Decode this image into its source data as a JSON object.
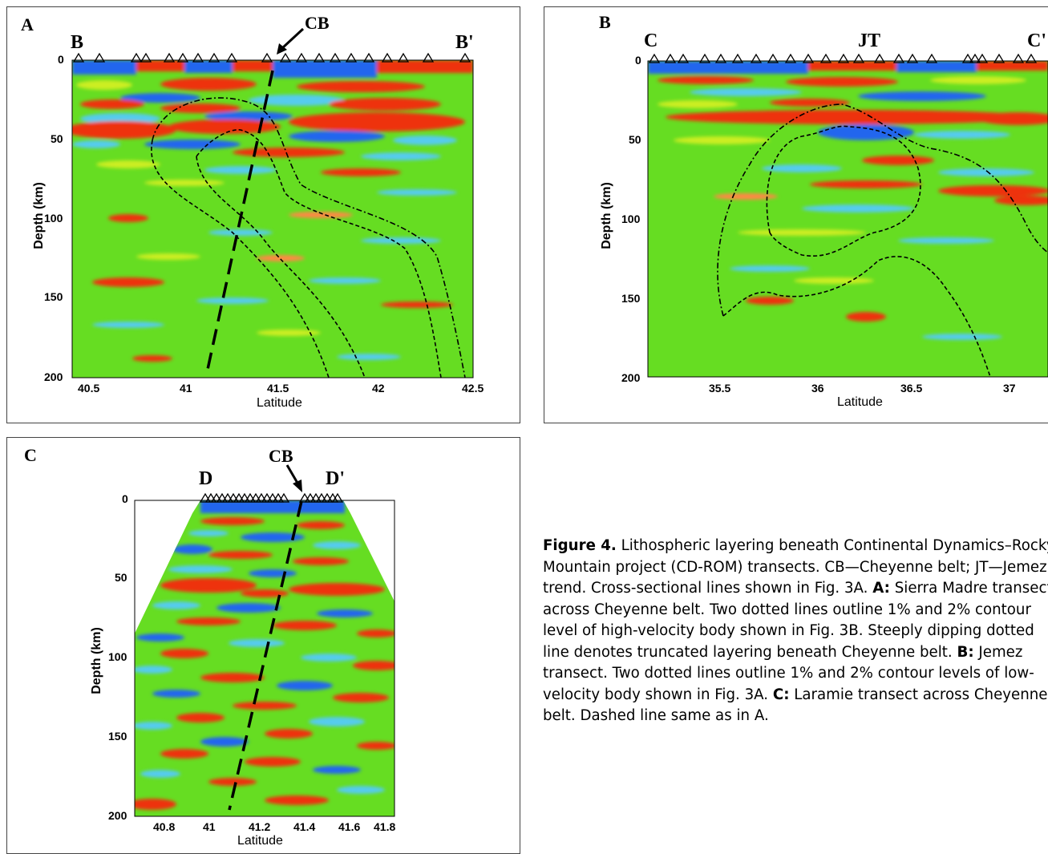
{
  "panels": {
    "A": {
      "letter": "A",
      "left_label": "B",
      "right_label": "B'",
      "marker_label": "CB",
      "ylabel": "Depth (km)",
      "xlabel": "Latitude",
      "xticks": [
        "40.5",
        "41",
        "41.5",
        "42",
        "42.5"
      ],
      "yticks": [
        "0",
        "50",
        "100",
        "150",
        "200"
      ]
    },
    "B": {
      "letter": "B",
      "left_label": "C",
      "right_label": "C'",
      "marker_label": "JT",
      "ylabel": "Depth (km)",
      "xlabel": "Latitude",
      "xticks": [
        "35.5",
        "36",
        "36.5",
        "37"
      ],
      "yticks": [
        "0",
        "50",
        "100",
        "150",
        "200"
      ]
    },
    "C": {
      "letter": "C",
      "left_label": "D",
      "right_label": "D'",
      "marker_label": "CB",
      "ylabel": "Depth (km)",
      "xlabel": "Latitude",
      "xticks": [
        "40.8",
        "41",
        "41.2",
        "41.4",
        "41.6",
        "41.8"
      ],
      "yticks": [
        "0",
        "50",
        "100",
        "150",
        "200"
      ]
    }
  },
  "caption": {
    "figure_label": "Figure 4.",
    "intro": " Lithospheric layering beneath Continental Dynamics–Rocky Mountain project (CD-ROM) transects. CB—Cheyenne belt; JT—Jemez trend. Cross-sectional lines shown in Fig. 3A. ",
    "a_label": "A:",
    "a_text": " Sierra Madre transect across Cheyenne belt. Two dotted lines outline 1% and 2% contour level of high-velocity body shown in Fig. 3B. Steeply dipping dotted line denotes truncated layering beneath Cheyenne belt. ",
    "b_label": "B:",
    "b_text": " Jemez transect. Two dotted lines outline 1% and 2% contour levels of low-velocity body shown in Fig. 3A. ",
    "c_label": "C:",
    "c_text": " Laramie transect across Cheyenne belt. Dashed line same as in A."
  },
  "colors": {
    "background_green": "#66dd22",
    "red": "#ee3311",
    "blue": "#2266ee",
    "cyan": "#55ccee",
    "yellow": "#ccee22",
    "orange": "#ff8844"
  }
}
